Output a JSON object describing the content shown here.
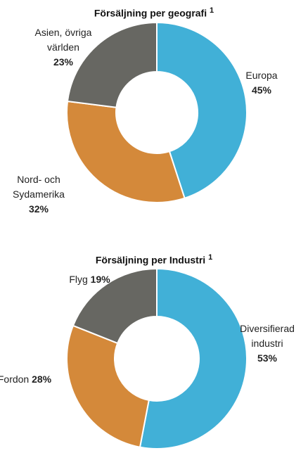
{
  "chart_data": [
    {
      "type": "donut",
      "title": "Försäljning per geografi",
      "footnote_mark": "1",
      "categories": [
        "Europa",
        "Nord- och Sydamerika",
        "Asien, övriga världen"
      ],
      "values": [
        45,
        32,
        23
      ],
      "value_labels": [
        "45%",
        "32%",
        "23%"
      ],
      "colors": [
        "#41b0d7",
        "#d4893a",
        "#676762"
      ]
    },
    {
      "type": "donut",
      "title": "Försäljning per Industri",
      "footnote_mark": "1",
      "categories": [
        "Diversifierad industri",
        "Fordon",
        "Flyg"
      ],
      "values": [
        53,
        28,
        19
      ],
      "value_labels": [
        "53%",
        "28%",
        "19%"
      ],
      "colors": [
        "#41b0d7",
        "#d4893a",
        "#676762"
      ]
    }
  ]
}
